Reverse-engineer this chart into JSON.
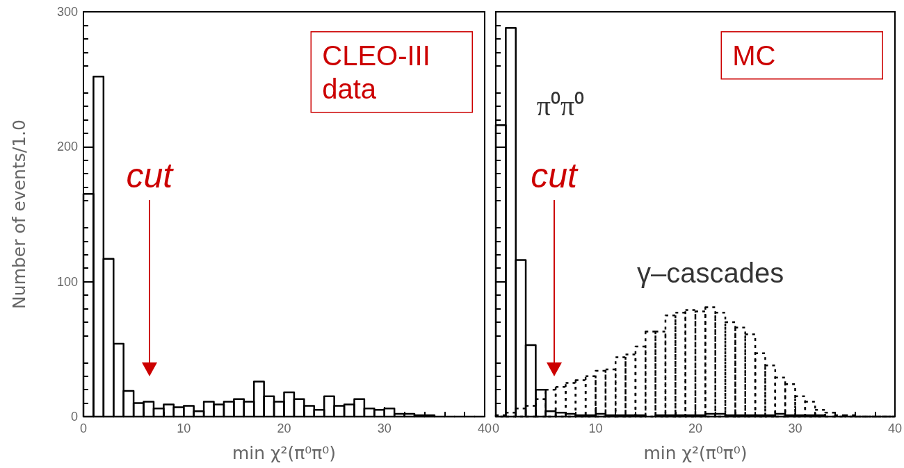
{
  "chart_data": [
    {
      "type": "histogram",
      "xlabel": "min χ²(π⁰π⁰)",
      "ylabel": "Number of events/1.0",
      "bins": [
        0,
        1,
        2,
        3,
        4,
        5,
        6,
        7,
        8,
        9,
        10,
        11,
        12,
        13,
        14,
        15,
        16,
        17,
        18,
        19,
        20,
        21,
        22,
        23,
        24,
        25,
        26,
        27,
        28,
        29,
        30,
        31,
        32,
        33,
        34,
        35,
        36,
        37,
        38,
        39,
        40
      ],
      "series": [
        {
          "color": "#000000",
          "values": [
            165,
            252,
            117,
            54,
            19,
            10,
            11,
            6,
            9,
            7,
            8,
            4,
            11,
            9,
            11,
            13,
            11,
            26,
            15,
            11,
            18,
            13,
            8,
            5,
            15,
            8,
            9,
            13,
            6,
            5,
            6,
            2,
            2,
            1,
            1,
            0,
            0,
            0,
            0,
            0
          ]
        }
      ],
      "xlim": [
        0,
        40
      ],
      "xticks": [
        0,
        10,
        20,
        30,
        40
      ],
      "ylim": [
        0,
        300
      ],
      "yticks": [
        0,
        100,
        200,
        300
      ],
      "annotations": [
        "CLEO-III data",
        "cut"
      ]
    },
    {
      "type": "histogram",
      "xlabel": "min χ²(π⁰π⁰)",
      "bins": [
        0,
        1,
        2,
        3,
        4,
        5,
        6,
        7,
        8,
        9,
        10,
        11,
        12,
        13,
        14,
        15,
        16,
        17,
        18,
        19,
        20,
        21,
        22,
        23,
        24,
        25,
        26,
        27,
        28,
        29,
        30,
        31,
        32,
        33,
        34,
        35,
        36,
        37,
        38,
        39,
        40
      ],
      "series": [
        {
          "name": "π⁰π⁰",
          "color": "#000000",
          "values": [
            216,
            288,
            116,
            53,
            20,
            4,
            3,
            2,
            1,
            1,
            2,
            1,
            1,
            1,
            1,
            0,
            1,
            1,
            1,
            1,
            1,
            2,
            2,
            1,
            1,
            1,
            1,
            1,
            2,
            1,
            1,
            1,
            1,
            0,
            0,
            0,
            0,
            0,
            0,
            0
          ]
        },
        {
          "name": "γ–cascades",
          "color": "#000000",
          "line_style": "dotted",
          "values": [
            1,
            3,
            6,
            8,
            13,
            20,
            22,
            25,
            27,
            30,
            34,
            35,
            44,
            46,
            52,
            63,
            63,
            75,
            77,
            79,
            78,
            81,
            77,
            70,
            66,
            61,
            47,
            38,
            29,
            24,
            15,
            11,
            5,
            3,
            1,
            1,
            0,
            0,
            0,
            0
          ]
        }
      ],
      "xlim": [
        0,
        40
      ],
      "xticks": [
        0,
        10,
        20,
        30,
        40
      ],
      "ylim": [
        0,
        300
      ],
      "yticks": [
        0,
        100,
        200,
        300
      ],
      "tick_labels": "x",
      "annotations": [
        "MC",
        "cut"
      ]
    }
  ]
}
